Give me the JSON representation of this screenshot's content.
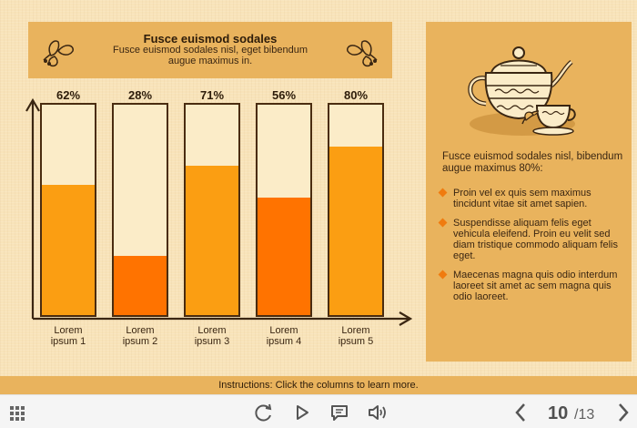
{
  "header": {
    "title": "Fusce euismod sodales",
    "subtitle": "Fusce euismod sodales nisl, eget bibendum augue maximus in."
  },
  "chart_data": {
    "type": "bar",
    "categories": [
      "Lorem ipsum 1",
      "Lorem ipsum 2",
      "Lorem ipsum 3",
      "Lorem ipsum 4",
      "Lorem ipsum 5"
    ],
    "values": [
      62,
      28,
      71,
      56,
      80
    ],
    "value_labels": [
      "62%",
      "28%",
      "71%",
      "56%",
      "80%"
    ],
    "ylim": [
      0,
      100
    ],
    "colors": [
      "#fb9e12",
      "#ff7300",
      "#fb9e12",
      "#ff7300",
      "#fb9e12"
    ]
  },
  "sidebar": {
    "intro": "Fusce euismod sodales nisl, bibendum augue maximus 80%:",
    "items": [
      "Proin vel ex quis sem maximus tincidunt vitae sit amet sapien.",
      "Suspendisse aliquam felis eget vehicula eleifend. Proin eu velit sed diam tristique commodo aliquam felis eget.",
      "Maecenas magna quis odio interdum laoreet sit amet ac sem magna quis odio laoreet."
    ]
  },
  "instructions": "Instructions: Click the columns to learn more.",
  "nav": {
    "current_page": "10",
    "total_pages": "/13",
    "icons": [
      "menu-grid-icon",
      "replay-icon",
      "play-icon",
      "notes-icon",
      "volume-icon",
      "prev-arrow-icon",
      "next-arrow-icon"
    ]
  },
  "colors": {
    "background": "#f8e3b9",
    "panel": "#e9b35d",
    "bar_light": "#fb9e12",
    "bar_dark": "#ff7300",
    "accent": "#f07b0f"
  }
}
